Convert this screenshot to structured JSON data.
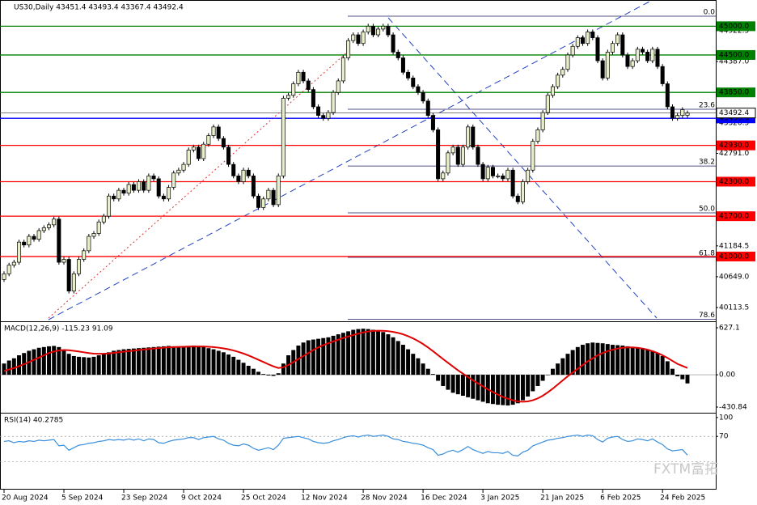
{
  "chart_data": [
    {
      "type": "candlestick",
      "title": "US30,Daily  43451.4 43493.4 43367.4 43492.4",
      "xlim": [
        0,
        137
      ],
      "ylim": [
        39903,
        45202
      ],
      "xticks": [
        {
          "value": 0,
          "label": "20 Aug 2024"
        },
        {
          "value": 12,
          "label": "5 Sep 2024"
        },
        {
          "value": 24,
          "label": "23 Sep 2024"
        },
        {
          "value": 36,
          "label": "9 Oct 2024"
        },
        {
          "value": 48,
          "label": "25 Oct 2024"
        },
        {
          "value": 60,
          "label": "12 Nov 2024"
        },
        {
          "value": 72,
          "label": "28 Nov 2024"
        },
        {
          "value": 84,
          "label": "16 Dec 2024"
        },
        {
          "value": 96,
          "label": "3 Jan 2025"
        },
        {
          "value": 108,
          "label": "21 Jan 2025"
        },
        {
          "value": 120,
          "label": "6 Feb 2025"
        },
        {
          "value": 132,
          "label": "24 Feb 2025"
        }
      ],
      "yticks": [
        {
          "value": 44922.5,
          "label": "44922.5"
        },
        {
          "value": 44387,
          "label": "44387.0"
        },
        {
          "value": 43320.5,
          "label": "43320.5"
        },
        {
          "value": 42791,
          "label": "42791.0"
        },
        {
          "value": 41184.5,
          "label": "41184.5"
        },
        {
          "value": 40649,
          "label": "40649.0"
        },
        {
          "value": 40113.5,
          "label": "40113.5"
        }
      ],
      "up_color": "#e6efc8",
      "down_color": "#000000",
      "open": [
        40600,
        40700,
        40850,
        40900,
        41250,
        41200,
        41350,
        41300,
        41450,
        41500,
        41550,
        41650,
        40900,
        40950,
        40400,
        40700,
        40950,
        41100,
        41350,
        41400,
        41600,
        41700,
        42050,
        42000,
        42150,
        42100,
        42250,
        42150,
        42300,
        42150,
        42400,
        42350,
        42050,
        42000,
        42200,
        42450,
        42500,
        42600,
        42850,
        42900,
        42700,
        42950,
        43100,
        43250,
        43050,
        42900,
        42600,
        42400,
        42300,
        42500,
        42400,
        42050,
        41850,
        42000,
        42150,
        41900,
        42400,
        43750,
        43800,
        44000,
        44200,
        44050,
        43900,
        43600,
        43450,
        43400,
        43500,
        43850,
        44050,
        44450,
        44750,
        44850,
        44700,
        44900,
        45000,
        44850,
        44950,
        45000,
        44850,
        44550,
        44450,
        44200,
        44100,
        43950,
        43850,
        43700,
        43450,
        43200,
        42350,
        42450,
        42800,
        42900,
        42600,
        42900,
        43250,
        42900,
        42600,
        42350,
        42550,
        42400,
        42400,
        42350,
        42500,
        42050,
        41950,
        42300,
        42500,
        43000,
        43200,
        43500,
        43800,
        43950,
        44150,
        44250,
        44500,
        44650,
        44800,
        44700,
        44900,
        44800,
        44400,
        44100,
        44550,
        44700,
        44850,
        44500,
        44300,
        44400,
        44600,
        44550,
        44400,
        44600,
        44300,
        44000,
        43600,
        43400,
        43450,
        43451.4
      ],
      "close": [
        40700,
        40850,
        40900,
        41250,
        41200,
        41350,
        41300,
        41450,
        41500,
        41550,
        41650,
        40900,
        40950,
        40400,
        40700,
        40950,
        41100,
        41350,
        41400,
        41600,
        41700,
        42050,
        42000,
        42150,
        42100,
        42250,
        42150,
        42300,
        42150,
        42400,
        42350,
        42050,
        42000,
        42200,
        42450,
        42500,
        42600,
        42850,
        42900,
        42700,
        42950,
        43100,
        43250,
        43050,
        42900,
        42600,
        42400,
        42300,
        42500,
        42400,
        42050,
        41850,
        42000,
        42150,
        41900,
        42400,
        43750,
        43800,
        44000,
        44200,
        44050,
        43900,
        43600,
        43450,
        43400,
        43500,
        43850,
        44050,
        44450,
        44750,
        44850,
        44700,
        44900,
        45000,
        44850,
        44950,
        45000,
        44850,
        44550,
        44450,
        44200,
        44100,
        43950,
        43850,
        43700,
        43450,
        43200,
        42350,
        42450,
        42800,
        42900,
        42600,
        42900,
        43250,
        42900,
        42600,
        42350,
        42550,
        42400,
        42400,
        42350,
        42500,
        42050,
        41950,
        42300,
        42500,
        43000,
        43200,
        43500,
        43800,
        43950,
        44150,
        44250,
        44500,
        44650,
        44800,
        44700,
        44900,
        44800,
        44400,
        44100,
        44550,
        44700,
        44850,
        44500,
        44300,
        44400,
        44600,
        44550,
        44400,
        44600,
        44300,
        44000,
        43600,
        43400,
        43450,
        43550,
        43492.4
      ],
      "levels": [
        {
          "value": 45000,
          "label": "45000.0",
          "color": "#008000"
        },
        {
          "value": 44500,
          "label": "44500.0",
          "color": "#008000"
        },
        {
          "value": 43850,
          "label": "43850.0",
          "color": "#008000"
        },
        {
          "value": 43400,
          "label": "43400.0",
          "color": "#0000ff"
        },
        {
          "value": 42930,
          "label": "42930.0",
          "color": "#ff0000"
        },
        {
          "value": 42300,
          "label": "42300.0",
          "color": "#ff0000"
        },
        {
          "value": 41700,
          "label": "41700.0",
          "color": "#ff0000"
        },
        {
          "value": 41000,
          "label": "41000.0",
          "color": "#ff0000"
        }
      ],
      "current_price": {
        "value": 43492.4,
        "label": "43492.4"
      },
      "fib_levels": [
        {
          "label": "0.0",
          "price": 45174
        },
        {
          "label": "23.6",
          "price": 43557
        },
        {
          "label": "38.2",
          "price": 42572
        },
        {
          "label": "50.0",
          "price": 41758
        },
        {
          "label": "61.8",
          "price": 40985
        },
        {
          "label": "78.6",
          "price": 39910
        }
      ]
    },
    {
      "type": "macd",
      "title": "MACD(12,26,9) -115.23 91.09",
      "ylim": [
        -485,
        692
      ],
      "yticks": [
        627.1,
        {
          "value": 0,
          "label": "0.00"
        },
        -430.84
      ],
      "bar_color": "#000000",
      "signal_color": "#e00000",
      "histogram": [
        150,
        190,
        220,
        260,
        290,
        320,
        340,
        360,
        370,
        380,
        385,
        370,
        330,
        280,
        250,
        240,
        235,
        230,
        240,
        260,
        280,
        300,
        320,
        330,
        340,
        345,
        350,
        355,
        360,
        365,
        370,
        375,
        380,
        385,
        380,
        375,
        380,
        385,
        390,
        380,
        370,
        355,
        340,
        320,
        300,
        270,
        240,
        200,
        160,
        120,
        80,
        40,
        10,
        -10,
        -15,
        20,
        150,
        260,
        330,
        390,
        430,
        460,
        470,
        480,
        490,
        500,
        520,
        540,
        560,
        580,
        600,
        610,
        615,
        610,
        600,
        590,
        570,
        540,
        500,
        450,
        400,
        340,
        280,
        220,
        150,
        80,
        10,
        -80,
        -150,
        -200,
        -240,
        -260,
        -280,
        -300,
        -320,
        -340,
        -360,
        -380,
        -390,
        -400,
        -405,
        -410,
        -400,
        -380,
        -340,
        -290,
        -220,
        -150,
        -80,
        0,
        80,
        150,
        220,
        280,
        330,
        370,
        400,
        420,
        430,
        425,
        420,
        410,
        400,
        395,
        390,
        380,
        370,
        360,
        350,
        340,
        320,
        290,
        250,
        180,
        80,
        -20,
        -60,
        -115.23
      ],
      "signal": [
        50,
        70,
        90,
        115,
        140,
        170,
        200,
        230,
        260,
        290,
        310,
        325,
        330,
        328,
        320,
        310,
        300,
        290,
        282,
        280,
        281,
        285,
        292,
        300,
        308,
        315,
        322,
        330,
        337,
        344,
        350,
        356,
        362,
        367,
        370,
        372,
        374,
        376,
        378,
        378,
        377,
        374,
        369,
        362,
        352,
        340,
        324,
        305,
        283,
        258,
        230,
        200,
        170,
        140,
        112,
        90,
        100,
        130,
        170,
        210,
        250,
        290,
        330,
        365,
        395,
        420,
        445,
        468,
        490,
        510,
        530,
        548,
        565,
        578,
        585,
        588,
        587,
        582,
        572,
        558,
        540,
        515,
        485,
        450,
        410,
        365,
        315,
        262,
        210,
        160,
        110,
        60,
        15,
        -30,
        -75,
        -115,
        -155,
        -195,
        -230,
        -265,
        -295,
        -320,
        -340,
        -355,
        -360,
        -355,
        -340,
        -315,
        -280,
        -235,
        -185,
        -130,
        -75,
        -20,
        30,
        80,
        130,
        180,
        220,
        260,
        290,
        315,
        335,
        350,
        360,
        365,
        365,
        360,
        350,
        335,
        315,
        290,
        260,
        225,
        185,
        145,
        118,
        91.09
      ]
    },
    {
      "type": "rsi",
      "title": "RSI(14) 40.2785",
      "ylim": [
        -12,
        105
      ],
      "yticks": [
        100,
        70
      ],
      "levels": [
        70,
        30
      ],
      "color": "#3a8fdc",
      "values": [
        62,
        63,
        60,
        62,
        61,
        63,
        62,
        64,
        63,
        64,
        65,
        55,
        56,
        48,
        52,
        56,
        57,
        59,
        60,
        62,
        63,
        65,
        64,
        65,
        64,
        66,
        64,
        66,
        63,
        66,
        65,
        60,
        59,
        62,
        64,
        65,
        66,
        68,
        68,
        65,
        68,
        69,
        70,
        66,
        64,
        59,
        56,
        55,
        58,
        56,
        51,
        48,
        50,
        52,
        49,
        56,
        67,
        68,
        69,
        70,
        68,
        66,
        62,
        60,
        59,
        60,
        63,
        65,
        68,
        70,
        71,
        69,
        71,
        72,
        70,
        71,
        72,
        70,
        66,
        65,
        62,
        61,
        59,
        58,
        56,
        52,
        49,
        40,
        42,
        46,
        48,
        45,
        49,
        54,
        49,
        46,
        43,
        46,
        44,
        44,
        43,
        46,
        40,
        39,
        45,
        48,
        55,
        58,
        61,
        64,
        65,
        67,
        68,
        70,
        71,
        72,
        70,
        72,
        71,
        65,
        61,
        67,
        69,
        70,
        65,
        62,
        63,
        66,
        65,
        63,
        66,
        61,
        57,
        50,
        47,
        48,
        49,
        40.2785
      ]
    }
  ],
  "watermark": "FXTM富拓"
}
